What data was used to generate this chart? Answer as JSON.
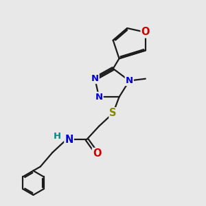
{
  "bg_color": "#e8e8e8",
  "bond_color": "#1a1a1a",
  "bond_width": 1.6,
  "atoms": {
    "N_blue": "#0000cc",
    "O_red": "#cc0000",
    "S_yellow": "#888800",
    "H_teal": "#008888"
  },
  "font_size": 9.5,
  "figsize": [
    3.0,
    3.0
  ],
  "dpi": 100,
  "xlim": [
    0,
    10
  ],
  "ylim": [
    0,
    10
  ]
}
